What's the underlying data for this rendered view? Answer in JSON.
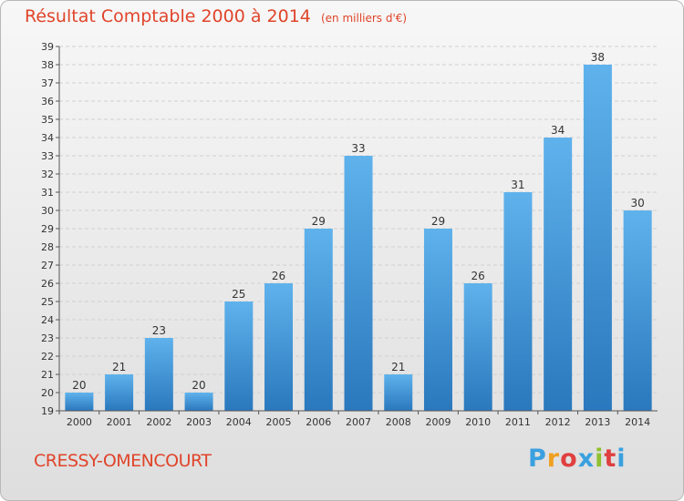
{
  "chart_data": {
    "type": "bar",
    "title": "Résultat Comptable 2000 à 2014",
    "subtitle": "(en milliers d'€)",
    "categories": [
      "2000",
      "2001",
      "2002",
      "2003",
      "2004",
      "2005",
      "2006",
      "2007",
      "2008",
      "2009",
      "2010",
      "2011",
      "2012",
      "2013",
      "2014"
    ],
    "values": [
      20,
      21,
      23,
      20,
      25,
      26,
      29,
      33,
      21,
      29,
      26,
      31,
      34,
      38,
      30
    ],
    "ylim": [
      19,
      39
    ],
    "yticks": [
      19,
      20,
      21,
      22,
      23,
      24,
      25,
      26,
      27,
      28,
      29,
      30,
      31,
      32,
      33,
      34,
      35,
      36,
      37,
      38,
      39
    ],
    "grid": true,
    "bar_color": "#4a9fe0"
  },
  "footer": {
    "commune": "CRESSY-OMENCOURT",
    "logo_letters": [
      "P",
      "r",
      "o",
      "x",
      "i",
      "t",
      "i"
    ],
    "logo_colors": [
      "#3aa0e0",
      "#f0a020",
      "#e04040",
      "#3aa0e0",
      "#90c030",
      "#e04040",
      "#3aa0e0"
    ]
  }
}
